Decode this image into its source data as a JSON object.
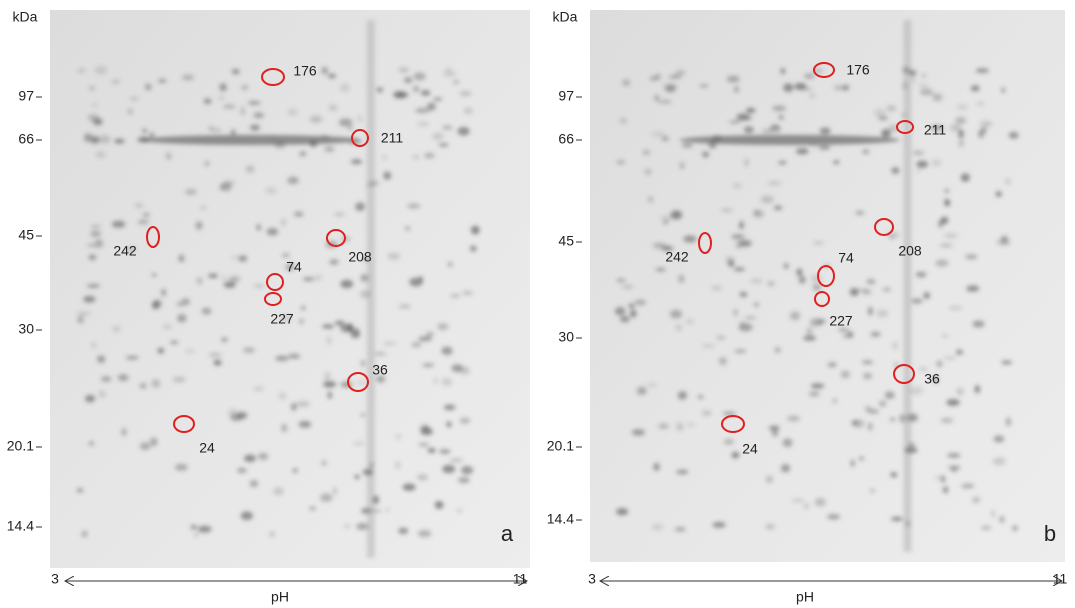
{
  "panels": [
    {
      "letter": "a",
      "y_unit": "kDa",
      "mw_ticks": [
        "97",
        "66",
        "45",
        "30",
        "20.1",
        "14.4"
      ],
      "spots": [
        "176",
        "211",
        "242",
        "208",
        "74",
        "227",
        "36",
        "24"
      ],
      "x_axis": {
        "start": "3",
        "end": "11",
        "label": "pH"
      }
    },
    {
      "letter": "b",
      "y_unit": "kDa",
      "mw_ticks": [
        "97",
        "66",
        "45",
        "30",
        "20.1",
        "14.4"
      ],
      "spots": [
        "176",
        "211",
        "242",
        "208",
        "74",
        "227",
        "36",
        "24"
      ],
      "x_axis": {
        "start": "3",
        "end": "11",
        "label": "pH"
      }
    }
  ]
}
